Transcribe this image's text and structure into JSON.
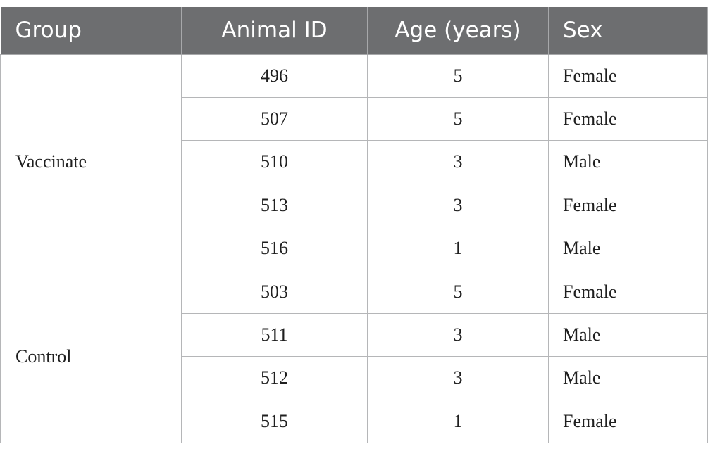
{
  "table": {
    "headers": [
      "Group",
      "Animal ID",
      "Age (years)",
      "Sex"
    ],
    "groups": [
      {
        "name": "Vaccinate",
        "rows": [
          {
            "animal_id": "496",
            "age": "5",
            "sex": "Female"
          },
          {
            "animal_id": "507",
            "age": "5",
            "sex": "Female"
          },
          {
            "animal_id": "510",
            "age": "3",
            "sex": "Male"
          },
          {
            "animal_id": "513",
            "age": "3",
            "sex": "Female"
          },
          {
            "animal_id": "516",
            "age": "1",
            "sex": "Male"
          }
        ]
      },
      {
        "name": "Control",
        "rows": [
          {
            "animal_id": "503",
            "age": "5",
            "sex": "Female"
          },
          {
            "animal_id": "511",
            "age": "3",
            "sex": "Male"
          },
          {
            "animal_id": "512",
            "age": "3",
            "sex": "Male"
          },
          {
            "animal_id": "515",
            "age": "1",
            "sex": "Female"
          }
        ]
      }
    ]
  }
}
